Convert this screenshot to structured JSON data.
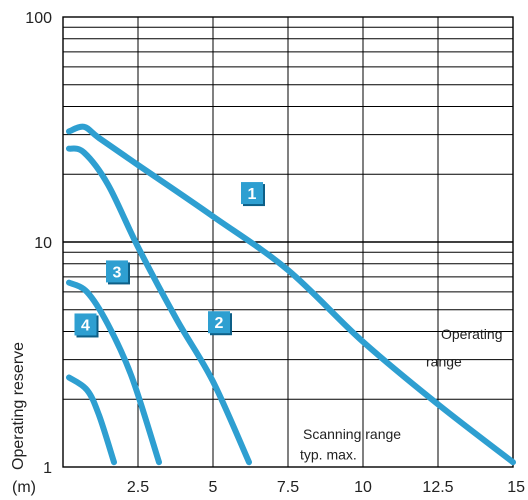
{
  "chart_data": {
    "type": "line",
    "title": "",
    "xlabel": "(m)",
    "ylabel": "Operating reserve",
    "x_ticks": [
      2.5,
      5,
      7.5,
      10,
      12.5,
      15
    ],
    "x_tick_labels": [
      "2.5",
      "5",
      "7.5",
      "10",
      "12.5",
      "15"
    ],
    "y_ticks": [
      1,
      10,
      100
    ],
    "y_tick_labels": [
      "1",
      "10",
      "100"
    ],
    "xlim": [
      0,
      15
    ],
    "ylim": [
      1,
      100
    ],
    "y_scale": "log",
    "grid": true,
    "series": [
      {
        "name": "1",
        "color": "#2e9fd1",
        "points": [
          [
            0.2,
            31
          ],
          [
            0.7,
            32.5
          ],
          [
            1.2,
            29
          ],
          [
            2.5,
            22
          ],
          [
            5,
            13
          ],
          [
            7.5,
            7.5
          ],
          [
            10,
            3.6
          ],
          [
            12.5,
            1.9
          ],
          [
            15,
            1.05
          ]
        ]
      },
      {
        "name": "2",
        "color": "#2e9fd1",
        "points": [
          [
            0.2,
            26
          ],
          [
            0.7,
            25
          ],
          [
            1.5,
            18
          ],
          [
            2.5,
            9.5
          ],
          [
            3.8,
            4.5
          ],
          [
            5,
            2.4
          ],
          [
            6.2,
            1.05
          ]
        ]
      },
      {
        "name": "3",
        "color": "#2e9fd1",
        "points": [
          [
            0.2,
            6.6
          ],
          [
            0.8,
            6.0
          ],
          [
            1.5,
            4.3
          ],
          [
            2.3,
            2.5
          ],
          [
            3.2,
            1.05
          ]
        ]
      },
      {
        "name": "4",
        "color": "#2e9fd1",
        "points": [
          [
            0.2,
            2.5
          ],
          [
            0.8,
            2.2
          ],
          [
            1.2,
            1.7
          ],
          [
            1.7,
            1.05
          ]
        ]
      }
    ],
    "annotations": [
      {
        "text": "Operating",
        "x": 12.6,
        "y": 3.7
      },
      {
        "text": "range",
        "x": 12.1,
        "y": 2.8
      },
      {
        "text": "Scanning range",
        "x": 8,
        "y": 1.33
      },
      {
        "text": "typ. max.",
        "x": 7.9,
        "y": 1.08
      }
    ],
    "badges": [
      {
        "label": "1",
        "x": 6.3,
        "y": 16.5
      },
      {
        "label": "2",
        "x": 5.2,
        "y": 4.4
      },
      {
        "label": "3",
        "x": 1.8,
        "y": 7.4
      },
      {
        "label": "4",
        "x": 0.75,
        "y": 4.3
      }
    ]
  }
}
